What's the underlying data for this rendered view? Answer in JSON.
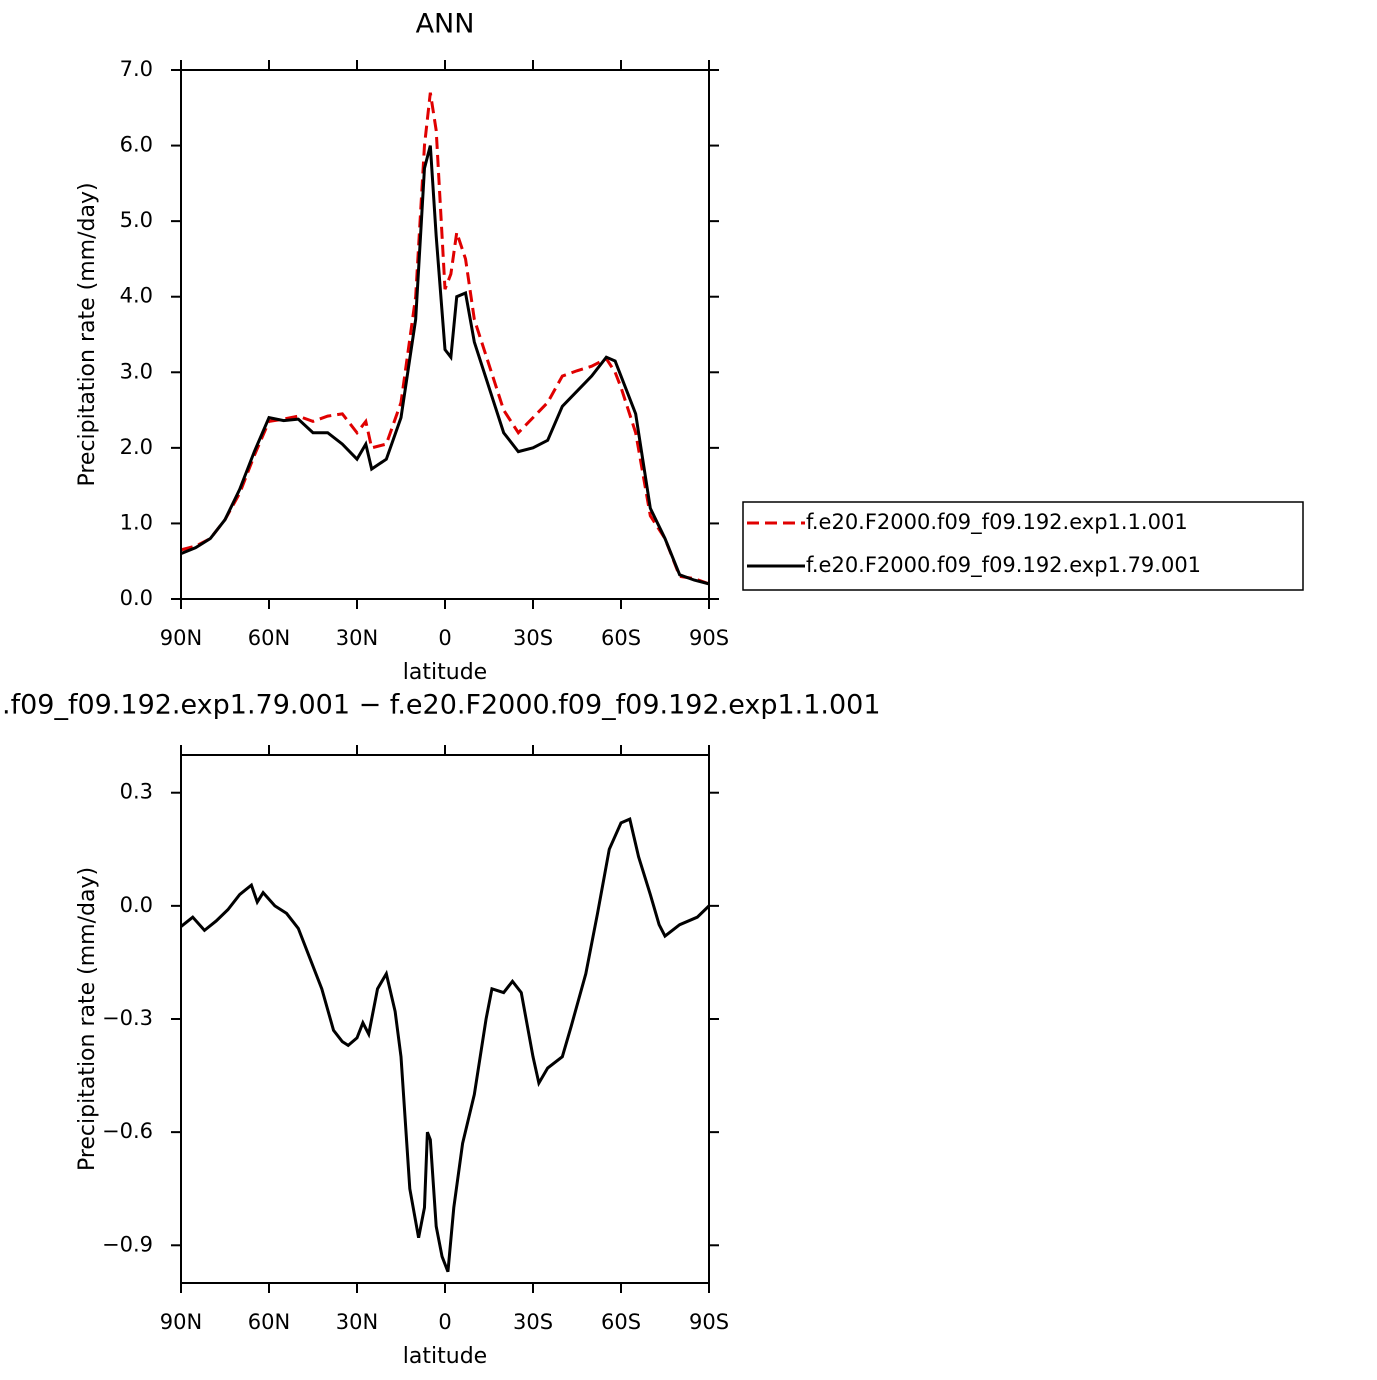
{
  "chart_data": [
    {
      "type": "line",
      "title": "ANN",
      "xlabel": "latitude",
      "ylabel": "Precipitation rate (mm/day)",
      "xlim": [
        90,
        -90
      ],
      "xticks": [
        {
          "value": 90,
          "label": "90N"
        },
        {
          "value": 60,
          "label": "60N"
        },
        {
          "value": 30,
          "label": "30N"
        },
        0,
        {
          "value": -30,
          "label": "30S"
        },
        {
          "value": -60,
          "label": "60S"
        },
        {
          "value": -90,
          "label": "90S"
        }
      ],
      "ylim": [
        0,
        7
      ],
      "yticks": [
        {
          "value": 0,
          "label": "0.0"
        },
        {
          "value": 1,
          "label": "1.0"
        },
        {
          "value": 2,
          "label": "2.0"
        },
        {
          "value": 3,
          "label": "3.0"
        },
        {
          "value": 4,
          "label": "4.0"
        },
        {
          "value": 5,
          "label": "5.0"
        },
        {
          "value": 6,
          "label": "6.0"
        },
        {
          "value": 7,
          "label": "7.0"
        }
      ],
      "legend": "right",
      "x": [
        90,
        85,
        80,
        75,
        70,
        65,
        60,
        55,
        50,
        45,
        40,
        35,
        30,
        27,
        25,
        20,
        15,
        10,
        7,
        5,
        3,
        0,
        -2,
        -4,
        -7,
        -10,
        -15,
        -20,
        -25,
        -30,
        -35,
        -40,
        -45,
        -50,
        -55,
        -58,
        -60,
        -65,
        -70,
        -75,
        -80,
        -85,
        -90
      ],
      "series": [
        {
          "name": "f.e20.F2000.f09_f09.192.exp1.1.001",
          "color": "#e00000",
          "dash": true,
          "values": [
            0.65,
            0.7,
            0.8,
            1.05,
            1.4,
            1.9,
            2.35,
            2.38,
            2.42,
            2.35,
            2.42,
            2.45,
            2.2,
            2.35,
            2.0,
            2.05,
            2.6,
            4.0,
            6.0,
            6.7,
            6.2,
            4.1,
            4.3,
            4.85,
            4.5,
            3.7,
            3.1,
            2.5,
            2.2,
            2.4,
            2.6,
            2.95,
            3.02,
            3.08,
            3.18,
            3.0,
            2.8,
            2.2,
            1.1,
            0.8,
            0.3,
            0.27,
            0.2
          ]
        },
        {
          "name": "f.e20.F2000.f09_f09.192.exp1.79.001",
          "color": "#000000",
          "dash": false,
          "values": [
            0.6,
            0.68,
            0.8,
            1.05,
            1.45,
            1.95,
            2.4,
            2.36,
            2.38,
            2.2,
            2.2,
            2.05,
            1.85,
            2.05,
            1.72,
            1.85,
            2.4,
            3.7,
            5.7,
            6.0,
            4.8,
            3.3,
            3.2,
            4.0,
            4.05,
            3.4,
            2.8,
            2.2,
            1.95,
            2.0,
            2.1,
            2.55,
            2.75,
            2.95,
            3.2,
            3.15,
            2.95,
            2.45,
            1.2,
            0.8,
            0.32,
            0.25,
            0.2
          ]
        }
      ]
    },
    {
      "type": "line",
      "title": ".f09_f09.192.exp1.79.001 − f.e20.F2000.f09_f09.192.exp1.1.001",
      "xlabel": "latitude",
      "ylabel": "Precipitation rate (mm/day)",
      "xlim": [
        90,
        -90
      ],
      "xticks": [
        {
          "value": 90,
          "label": "90N"
        },
        {
          "value": 60,
          "label": "60N"
        },
        {
          "value": 30,
          "label": "30N"
        },
        0,
        {
          "value": -30,
          "label": "30S"
        },
        {
          "value": -60,
          "label": "60S"
        },
        {
          "value": -90,
          "label": "90S"
        }
      ],
      "ylim": [
        -1.0,
        0.4
      ],
      "yticks": [
        {
          "value": -0.9,
          "label": "−0.9"
        },
        {
          "value": -0.6,
          "label": "−0.6"
        },
        {
          "value": -0.3,
          "label": "−0.3"
        },
        {
          "value": 0,
          "label": "0.0"
        },
        0.3
      ],
      "x": [
        90,
        86,
        82,
        78,
        74,
        70,
        66,
        64,
        62,
        58,
        54,
        50,
        46,
        42,
        38,
        35,
        33,
        30,
        28,
        26,
        23,
        20,
        17,
        15,
        12,
        9,
        7,
        6,
        5,
        3,
        1,
        -1,
        -3,
        -6,
        -10,
        -14,
        -16,
        -20,
        -23,
        -26,
        -30,
        -32,
        -35,
        -40,
        -43,
        -48,
        -52,
        -56,
        -60,
        -63,
        -66,
        -70,
        -73,
        -75,
        -80,
        -86,
        -90
      ],
      "series": [
        {
          "color": "#000000",
          "dash": false,
          "values": [
            -0.055,
            -0.03,
            -0.065,
            -0.04,
            -0.01,
            0.03,
            0.055,
            0.01,
            0.035,
            0.0,
            -0.02,
            -0.06,
            -0.14,
            -0.22,
            -0.33,
            -0.36,
            -0.37,
            -0.35,
            -0.31,
            -0.34,
            -0.22,
            -0.18,
            -0.28,
            -0.4,
            -0.75,
            -0.88,
            -0.8,
            -0.6,
            -0.62,
            -0.85,
            -0.93,
            -0.97,
            -0.8,
            -0.63,
            -0.5,
            -0.3,
            -0.22,
            -0.23,
            -0.2,
            -0.23,
            -0.4,
            -0.47,
            -0.43,
            -0.4,
            -0.32,
            -0.18,
            -0.02,
            0.15,
            0.22,
            0.23,
            0.13,
            0.03,
            -0.05,
            -0.08,
            -0.05,
            -0.03,
            0.0
          ]
        }
      ]
    }
  ]
}
